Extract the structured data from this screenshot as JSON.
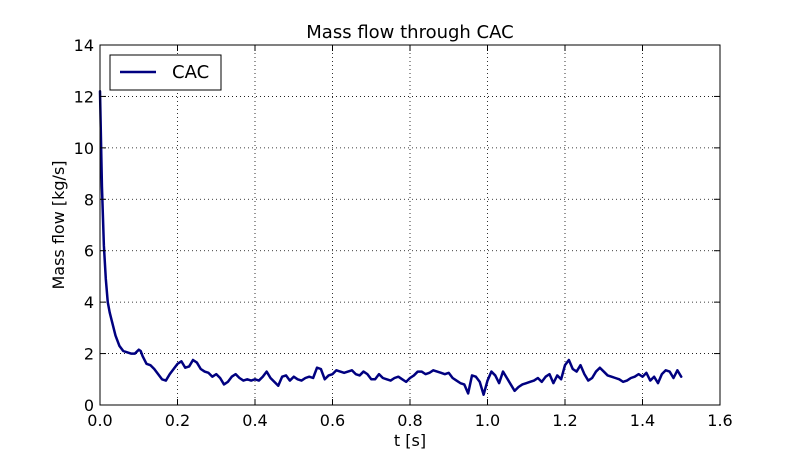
{
  "chart_data": {
    "type": "line",
    "title": "Mass flow through CAC",
    "xlabel": "t [s]",
    "ylabel": "Mass flow [kg/s]",
    "xlim": [
      0.0,
      1.6
    ],
    "ylim": [
      0,
      14
    ],
    "xticks": [
      0.0,
      0.2,
      0.4,
      0.6,
      0.8,
      1.0,
      1.2,
      1.4,
      1.6
    ],
    "xtick_labels": [
      "0.0",
      "0.2",
      "0.4",
      "0.6",
      "0.8",
      "1.0",
      "1.2",
      "1.4",
      "1.6"
    ],
    "yticks": [
      0,
      2,
      4,
      6,
      8,
      10,
      12,
      14
    ],
    "ytick_labels": [
      "0",
      "2",
      "4",
      "6",
      "8",
      "10",
      "12",
      "14"
    ],
    "grid": true,
    "legend_position": "top-left",
    "series": [
      {
        "name": "CAC",
        "color": "#000080",
        "x": [
          0.0,
          0.005,
          0.01,
          0.015,
          0.02,
          0.025,
          0.03,
          0.04,
          0.05,
          0.06,
          0.07,
          0.08,
          0.09,
          0.1,
          0.105,
          0.11,
          0.12,
          0.13,
          0.14,
          0.15,
          0.16,
          0.17,
          0.18,
          0.19,
          0.2,
          0.21,
          0.22,
          0.23,
          0.24,
          0.25,
          0.26,
          0.27,
          0.28,
          0.29,
          0.3,
          0.31,
          0.32,
          0.33,
          0.34,
          0.35,
          0.36,
          0.37,
          0.38,
          0.39,
          0.4,
          0.41,
          0.42,
          0.43,
          0.44,
          0.45,
          0.46,
          0.47,
          0.48,
          0.49,
          0.5,
          0.51,
          0.52,
          0.53,
          0.54,
          0.55,
          0.56,
          0.57,
          0.58,
          0.59,
          0.6,
          0.61,
          0.62,
          0.63,
          0.64,
          0.65,
          0.66,
          0.67,
          0.68,
          0.69,
          0.7,
          0.71,
          0.72,
          0.73,
          0.74,
          0.75,
          0.76,
          0.77,
          0.78,
          0.79,
          0.8,
          0.81,
          0.82,
          0.83,
          0.84,
          0.85,
          0.86,
          0.87,
          0.88,
          0.89,
          0.9,
          0.91,
          0.92,
          0.93,
          0.94,
          0.95,
          0.96,
          0.97,
          0.98,
          0.99,
          1.0,
          1.01,
          1.02,
          1.03,
          1.04,
          1.05,
          1.06,
          1.07,
          1.08,
          1.09,
          1.1,
          1.11,
          1.12,
          1.13,
          1.14,
          1.15,
          1.16,
          1.17,
          1.18,
          1.19,
          1.2,
          1.21,
          1.22,
          1.23,
          1.24,
          1.25,
          1.26,
          1.27,
          1.28,
          1.29,
          1.3,
          1.31,
          1.32,
          1.33,
          1.34,
          1.35,
          1.36,
          1.37,
          1.38,
          1.39,
          1.4,
          1.41,
          1.42,
          1.43,
          1.44,
          1.45,
          1.46,
          1.47,
          1.48,
          1.49,
          1.5
        ],
        "values": [
          12.2,
          8.5,
          6.2,
          4.9,
          4.0,
          3.6,
          3.3,
          2.7,
          2.3,
          2.1,
          2.05,
          2.0,
          2.0,
          2.15,
          2.1,
          1.9,
          1.6,
          1.55,
          1.4,
          1.2,
          1.0,
          0.95,
          1.2,
          1.4,
          1.6,
          1.7,
          1.45,
          1.5,
          1.75,
          1.65,
          1.4,
          1.3,
          1.25,
          1.1,
          1.2,
          1.05,
          0.8,
          0.9,
          1.1,
          1.2,
          1.05,
          0.95,
          1.0,
          0.95,
          1.0,
          0.95,
          1.1,
          1.3,
          1.05,
          0.9,
          0.75,
          1.1,
          1.15,
          0.95,
          1.1,
          1.0,
          0.95,
          1.05,
          1.1,
          1.05,
          1.45,
          1.4,
          1.0,
          1.15,
          1.2,
          1.35,
          1.3,
          1.25,
          1.3,
          1.35,
          1.2,
          1.15,
          1.3,
          1.2,
          1.0,
          1.0,
          1.2,
          1.05,
          1.0,
          0.95,
          1.05,
          1.1,
          1.0,
          0.9,
          1.05,
          1.15,
          1.3,
          1.3,
          1.2,
          1.25,
          1.35,
          1.3,
          1.25,
          1.2,
          1.25,
          1.05,
          0.95,
          0.85,
          0.8,
          0.45,
          1.15,
          1.1,
          0.9,
          0.4,
          0.95,
          1.3,
          1.15,
          0.85,
          1.3,
          1.05,
          0.8,
          0.55,
          0.7,
          0.8,
          0.85,
          0.9,
          0.95,
          1.05,
          0.9,
          1.1,
          1.2,
          0.85,
          1.15,
          1.0,
          1.55,
          1.75,
          1.4,
          1.3,
          1.55,
          1.2,
          0.95,
          1.05,
          1.3,
          1.45,
          1.3,
          1.15,
          1.1,
          1.05,
          1.0,
          0.9,
          0.95,
          1.05,
          1.1,
          1.2,
          1.1,
          1.25,
          0.95,
          1.1,
          0.85,
          1.2,
          1.35,
          1.3,
          1.05,
          1.35,
          1.1
        ]
      }
    ]
  }
}
